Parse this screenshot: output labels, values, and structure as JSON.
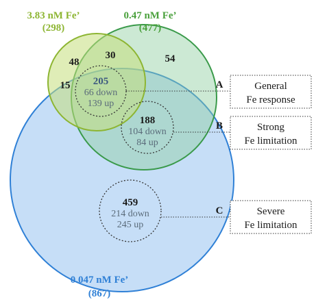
{
  "sets": {
    "fe_383": {
      "label": "3.83 nM Fe’",
      "count": "(298)",
      "color": "#8db532",
      "fill": "#cfe59a"
    },
    "fe_047": {
      "label": "0.47 nM Fe’",
      "count": "(477)",
      "color": "#4aa03c",
      "fill": "#bfe3a8"
    },
    "fe_0047": {
      "label": "0.047 nM Fe’",
      "count": "(867)",
      "color": "#2f80d6",
      "fill": "#bcd8f6"
    }
  },
  "regions": {
    "only_383": "48",
    "383_047": "30",
    "only_047": "54",
    "383_0047": "15"
  },
  "groups": {
    "general": {
      "total": "205",
      "down": "66 down",
      "up": "139 up",
      "letter": "A",
      "line1": "General",
      "line2": "Fe response"
    },
    "strong": {
      "total": "188",
      "down": "104 down",
      "up": "84 up",
      "letter": "B",
      "line1": "Strong",
      "line2": "Fe limitation"
    },
    "severe": {
      "total": "459",
      "down": "214 down",
      "up": "245 up",
      "letter": "C",
      "line1": "Severe",
      "line2": "Fe limitation"
    }
  }
}
